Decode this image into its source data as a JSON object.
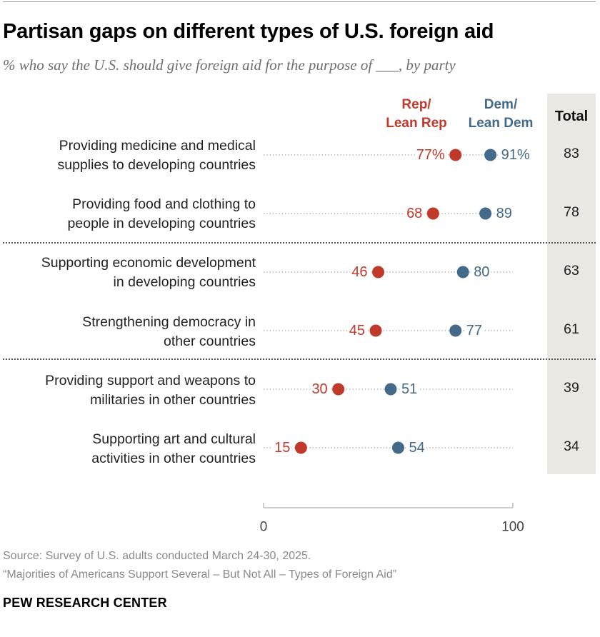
{
  "title": "Partisan gaps on different types of U.S. foreign aid",
  "subtitle": "% who say the U.S. should give foreign aid for the purpose of ___, by party",
  "colors": {
    "rep": "#c0392b",
    "dem": "#436a88",
    "total_bg": "#eae8e2"
  },
  "legend": {
    "rep_line1": "Rep/",
    "rep_line2": "Lean Rep",
    "dem_line1": "Dem/",
    "dem_line2": "Lean Dem",
    "total": "Total"
  },
  "chart_data": {
    "type": "dot",
    "xlim": [
      0,
      100
    ],
    "x_ticks": [
      "0",
      "100"
    ],
    "series": [
      {
        "name": "Rep/Lean Rep",
        "values": [
          77,
          68,
          46,
          45,
          30,
          15
        ]
      },
      {
        "name": "Dem/Lean Dem",
        "values": [
          91,
          89,
          80,
          77,
          51,
          54
        ]
      },
      {
        "name": "Total",
        "values": [
          83,
          78,
          63,
          61,
          39,
          34
        ]
      }
    ],
    "rows": [
      {
        "line1": "Providing medicine and medical",
        "line2": "supplies to developing countries",
        "rep": 77,
        "dem": 91,
        "total": "83",
        "rep_label": "77%",
        "dem_label": "91%"
      },
      {
        "line1": "Providing food and clothing to",
        "line2": "people in developing countries",
        "rep": 68,
        "dem": 89,
        "total": "78",
        "rep_label": "68",
        "dem_label": "89"
      },
      {
        "line1": "Supporting economic development",
        "line2": "in developing countries",
        "rep": 46,
        "dem": 80,
        "total": "63",
        "rep_label": "46",
        "dem_label": "80"
      },
      {
        "line1": "Strengthening democracy in",
        "line2": "other countries",
        "rep": 45,
        "dem": 77,
        "total": "61",
        "rep_label": "45",
        "dem_label": "77"
      },
      {
        "line1": "Providing support and weapons to",
        "line2": "militaries in other countries",
        "rep": 30,
        "dem": 51,
        "total": "39",
        "rep_label": "30",
        "dem_label": "51"
      },
      {
        "line1": "Supporting art and cultural",
        "line2": "activities in other countries",
        "rep": 15,
        "dem": 54,
        "total": "34",
        "rep_label": "15",
        "dem_label": "54"
      }
    ]
  },
  "footer": {
    "source": "Source: Survey of U.S. adults conducted March 24-30, 2025.",
    "report": "“Majorities of Americans Support Several – But Not All – Types of Foreign Aid”",
    "brand": "PEW RESEARCH CENTER"
  }
}
